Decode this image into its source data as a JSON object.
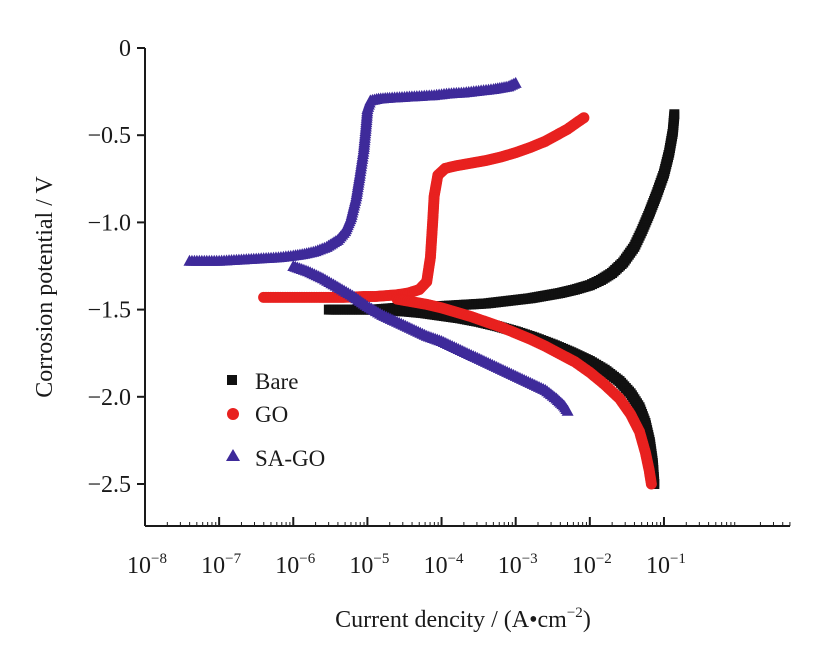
{
  "chart_data": {
    "type": "scatter",
    "title": "",
    "xlabel": "Current dencity / (A•cm",
    "xlabel_exponent": "−2",
    "xlabel_close": ")",
    "ylabel": "Corrosion potential / V",
    "x_scale": "log10",
    "xlim_exponent": [
      -8,
      0.7
    ],
    "ylim": [
      -2.7,
      0
    ],
    "x_tick_base": "10",
    "x_ticks": [
      {
        "exp": -8,
        "label": "−8"
      },
      {
        "exp": -7,
        "label": "−7"
      },
      {
        "exp": -6,
        "label": "−6"
      },
      {
        "exp": -5,
        "label": "−5"
      },
      {
        "exp": -4,
        "label": "−4"
      },
      {
        "exp": -3,
        "label": "−3"
      },
      {
        "exp": -2,
        "label": "−2"
      },
      {
        "exp": -1,
        "label": "−1"
      }
    ],
    "y_ticks": [
      {
        "value": 0,
        "label": "0"
      },
      {
        "value": -0.5,
        "label": "−0.5"
      },
      {
        "value": -1.0,
        "label": "−1.0"
      },
      {
        "value": -1.5,
        "label": "−1.5"
      },
      {
        "value": -2.0,
        "label": "−2.0"
      },
      {
        "value": -2.5,
        "label": "−2.5"
      }
    ],
    "legend_position": "bottom-left",
    "series": [
      {
        "name": "Bare",
        "marker": "square",
        "color": "#111111",
        "points": [
          [
            -5.52,
            -1.5
          ],
          [
            -5.3,
            -1.5
          ],
          [
            -5.05,
            -1.5
          ],
          [
            -4.9,
            -1.5
          ],
          [
            -4.75,
            -1.495
          ],
          [
            -4.6,
            -1.49
          ],
          [
            -4.4,
            -1.487
          ],
          [
            -4.2,
            -1.483
          ],
          [
            -4.0,
            -1.48
          ],
          [
            -3.8,
            -1.475
          ],
          [
            -3.6,
            -1.47
          ],
          [
            -3.4,
            -1.465
          ],
          [
            -3.2,
            -1.455
          ],
          [
            -3.0,
            -1.445
          ],
          [
            -2.8,
            -1.435
          ],
          [
            -2.6,
            -1.42
          ],
          [
            -2.4,
            -1.405
          ],
          [
            -2.2,
            -1.385
          ],
          [
            -2.0,
            -1.36
          ],
          [
            -1.85,
            -1.33
          ],
          [
            -1.7,
            -1.29
          ],
          [
            -1.55,
            -1.23
          ],
          [
            -1.4,
            -1.14
          ],
          [
            -1.3,
            -1.05
          ],
          [
            -1.2,
            -0.95
          ],
          [
            -1.1,
            -0.84
          ],
          [
            -1.0,
            -0.72
          ],
          [
            -0.93,
            -0.6
          ],
          [
            -0.88,
            -0.48
          ],
          [
            -0.86,
            -0.38
          ],
          [
            -4.75,
            -1.505
          ],
          [
            -4.5,
            -1.51
          ],
          [
            -4.25,
            -1.52
          ],
          [
            -4.0,
            -1.535
          ],
          [
            -3.75,
            -1.55
          ],
          [
            -3.5,
            -1.57
          ],
          [
            -3.25,
            -1.595
          ],
          [
            -3.0,
            -1.625
          ],
          [
            -2.75,
            -1.66
          ],
          [
            -2.5,
            -1.7
          ],
          [
            -2.25,
            -1.745
          ],
          [
            -2.0,
            -1.795
          ],
          [
            -1.8,
            -1.845
          ],
          [
            -1.6,
            -1.91
          ],
          [
            -1.45,
            -1.98
          ],
          [
            -1.33,
            -2.06
          ],
          [
            -1.25,
            -2.15
          ],
          [
            -1.19,
            -2.26
          ],
          [
            -1.15,
            -2.38
          ],
          [
            -1.13,
            -2.5
          ]
        ]
      },
      {
        "name": "GO",
        "marker": "circle",
        "color": "#e8211f",
        "points": [
          [
            -6.4,
            -1.43
          ],
          [
            -5.85,
            -1.43
          ],
          [
            -5.65,
            -1.43
          ],
          [
            -5.5,
            -1.43
          ],
          [
            -5.35,
            -1.43
          ],
          [
            -5.2,
            -1.428
          ],
          [
            -5.05,
            -1.425
          ],
          [
            -4.9,
            -1.425
          ],
          [
            -4.75,
            -1.42
          ],
          [
            -4.6,
            -1.415
          ],
          [
            -4.45,
            -1.405
          ],
          [
            -4.3,
            -1.385
          ],
          [
            -4.2,
            -1.34
          ],
          [
            -4.15,
            -1.2
          ],
          [
            -4.12,
            -1.0
          ],
          [
            -4.1,
            -0.85
          ],
          [
            -4.05,
            -0.73
          ],
          [
            -3.95,
            -0.69
          ],
          [
            -3.8,
            -0.675
          ],
          [
            -3.6,
            -0.66
          ],
          [
            -3.4,
            -0.645
          ],
          [
            -3.2,
            -0.625
          ],
          [
            -3.0,
            -0.6
          ],
          [
            -2.8,
            -0.57
          ],
          [
            -2.6,
            -0.535
          ],
          [
            -2.45,
            -0.5
          ],
          [
            -2.3,
            -0.465
          ],
          [
            -2.15,
            -0.42
          ],
          [
            -2.08,
            -0.4
          ],
          [
            -4.6,
            -1.44
          ],
          [
            -4.4,
            -1.455
          ],
          [
            -4.2,
            -1.47
          ],
          [
            -4.0,
            -1.49
          ],
          [
            -3.8,
            -1.515
          ],
          [
            -3.6,
            -1.54
          ],
          [
            -3.4,
            -1.57
          ],
          [
            -3.2,
            -1.6
          ],
          [
            -3.0,
            -1.635
          ],
          [
            -2.8,
            -1.67
          ],
          [
            -2.6,
            -1.71
          ],
          [
            -2.4,
            -1.755
          ],
          [
            -2.2,
            -1.8
          ],
          [
            -2.0,
            -1.86
          ],
          [
            -1.8,
            -1.93
          ],
          [
            -1.6,
            -2.01
          ],
          [
            -1.45,
            -2.1
          ],
          [
            -1.33,
            -2.2
          ],
          [
            -1.25,
            -2.32
          ],
          [
            -1.2,
            -2.42
          ],
          [
            -1.17,
            -2.5
          ]
        ]
      },
      {
        "name": "SA-GO",
        "marker": "triangle",
        "color": "#3e2a9a",
        "points": [
          [
            -7.4,
            -1.22
          ],
          [
            -7.3,
            -1.22
          ],
          [
            -7.0,
            -1.22
          ],
          [
            -6.8,
            -1.215
          ],
          [
            -6.6,
            -1.21
          ],
          [
            -6.4,
            -1.205
          ],
          [
            -6.2,
            -1.2
          ],
          [
            -6.0,
            -1.19
          ],
          [
            -5.85,
            -1.18
          ],
          [
            -5.7,
            -1.165
          ],
          [
            -5.55,
            -1.14
          ],
          [
            -5.4,
            -1.1
          ],
          [
            -5.3,
            -1.05
          ],
          [
            -5.22,
            -0.97
          ],
          [
            -5.15,
            -0.85
          ],
          [
            -5.1,
            -0.72
          ],
          [
            -5.05,
            -0.58
          ],
          [
            -5.02,
            -0.45
          ],
          [
            -5.0,
            -0.35
          ],
          [
            -4.96,
            -0.3
          ],
          [
            -4.85,
            -0.29
          ],
          [
            -4.7,
            -0.285
          ],
          [
            -4.5,
            -0.28
          ],
          [
            -4.3,
            -0.275
          ],
          [
            -4.1,
            -0.27
          ],
          [
            -3.9,
            -0.26
          ],
          [
            -3.7,
            -0.255
          ],
          [
            -3.5,
            -0.245
          ],
          [
            -3.3,
            -0.235
          ],
          [
            -3.1,
            -0.22
          ],
          [
            -3.0,
            -0.2
          ],
          [
            -6.0,
            -1.25
          ],
          [
            -5.8,
            -1.28
          ],
          [
            -5.6,
            -1.32
          ],
          [
            -5.4,
            -1.37
          ],
          [
            -5.2,
            -1.42
          ],
          [
            -5.0,
            -1.48
          ],
          [
            -4.8,
            -1.53
          ],
          [
            -4.6,
            -1.57
          ],
          [
            -4.4,
            -1.61
          ],
          [
            -4.2,
            -1.65
          ],
          [
            -4.0,
            -1.68
          ],
          [
            -3.8,
            -1.72
          ],
          [
            -3.6,
            -1.76
          ],
          [
            -3.4,
            -1.8
          ],
          [
            -3.2,
            -1.84
          ],
          [
            -3.0,
            -1.88
          ],
          [
            -2.8,
            -1.92
          ],
          [
            -2.6,
            -1.96
          ],
          [
            -2.45,
            -2.01
          ],
          [
            -2.35,
            -2.05
          ],
          [
            -2.3,
            -2.08
          ]
        ]
      }
    ]
  }
}
